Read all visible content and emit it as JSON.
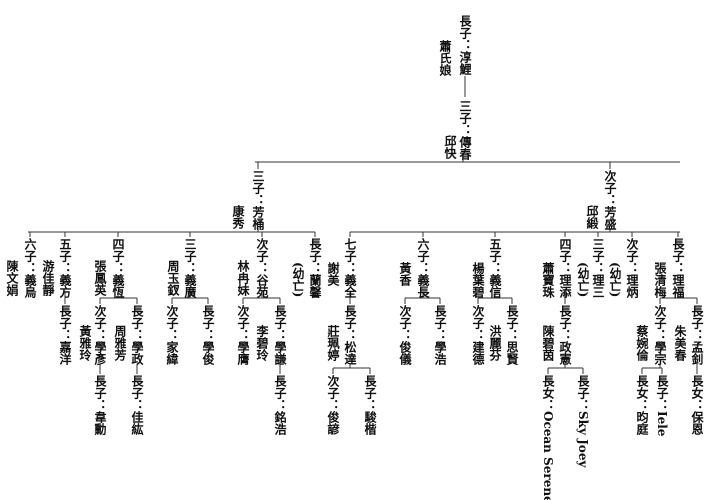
{
  "persons": [
    {
      "label": "長子：淳鯉"
    },
    {
      "label": "蕭氏娘"
    },
    {
      "label": "三子：傳春"
    },
    {
      "label": "邱快"
    },
    {
      "label": "三子：芳桶"
    },
    {
      "label": "康秀"
    },
    {
      "label": "次子：芳盛"
    },
    {
      "label": "邱緞"
    },
    {
      "label": "六子：義烏"
    },
    {
      "label": "陳文娟"
    },
    {
      "label": "五子：義方"
    },
    {
      "label": "游佳靜"
    },
    {
      "label": "長子：嘉洋"
    },
    {
      "label": "四子：義恆"
    },
    {
      "label": "張鳳英"
    },
    {
      "label": "次子：學彥"
    },
    {
      "label": "黃雅玲"
    },
    {
      "label": "長子：學政"
    },
    {
      "label": "周雅芳"
    },
    {
      "label": "長子：韋勳"
    },
    {
      "label": "長子：佳紘"
    },
    {
      "label": "三子：義廣"
    },
    {
      "label": "周玉釵"
    },
    {
      "label": "次子：家緯"
    },
    {
      "label": "長子：學俊"
    },
    {
      "label": "次子：谷苑"
    },
    {
      "label": "林冉妹"
    },
    {
      "label": "次子：學膺"
    },
    {
      "label": "長子：學謙"
    },
    {
      "label": "李碧玲"
    },
    {
      "label": "長子：銘浩"
    },
    {
      "label": "長子：蘭馨"
    },
    {
      "label": "(幼亡)"
    },
    {
      "label": "七子：義全"
    },
    {
      "label": "謝美"
    },
    {
      "label": "長子：松達"
    },
    {
      "label": "莊珮婷"
    },
    {
      "label": "次子：俊諺"
    },
    {
      "label": "長子：駿楷"
    },
    {
      "label": "六子：義長"
    },
    {
      "label": "黃香"
    },
    {
      "label": "次子：俊儀"
    },
    {
      "label": "長子：學浩"
    },
    {
      "label": "五子：義信"
    },
    {
      "label": "楊葉碧"
    },
    {
      "label": "次子：建德"
    },
    {
      "label": "長子：思賢"
    },
    {
      "label": "洪麗芬"
    },
    {
      "label": "四子：理添"
    },
    {
      "label": "蕭寶珠"
    },
    {
      "label": "長子：政憲"
    },
    {
      "label": "陳碧茵"
    },
    {
      "label": "長女：Ocean Serene"
    },
    {
      "label": "長子：Sky Joey"
    },
    {
      "label": "三子：理三"
    },
    {
      "label": "(幼亡)"
    },
    {
      "label": "次子：理炳"
    },
    {
      "label": "(幼亡)"
    },
    {
      "label": "長子：理福"
    },
    {
      "label": "張清梅"
    },
    {
      "label": "次子：學宗"
    },
    {
      "label": "蔡婉倫"
    },
    {
      "label": "長子：孟釗"
    },
    {
      "label": "朱美春"
    },
    {
      "label": "長女：昀庭"
    },
    {
      "label": "長子：Iele"
    },
    {
      "label": "長女：保恩"
    }
  ]
}
